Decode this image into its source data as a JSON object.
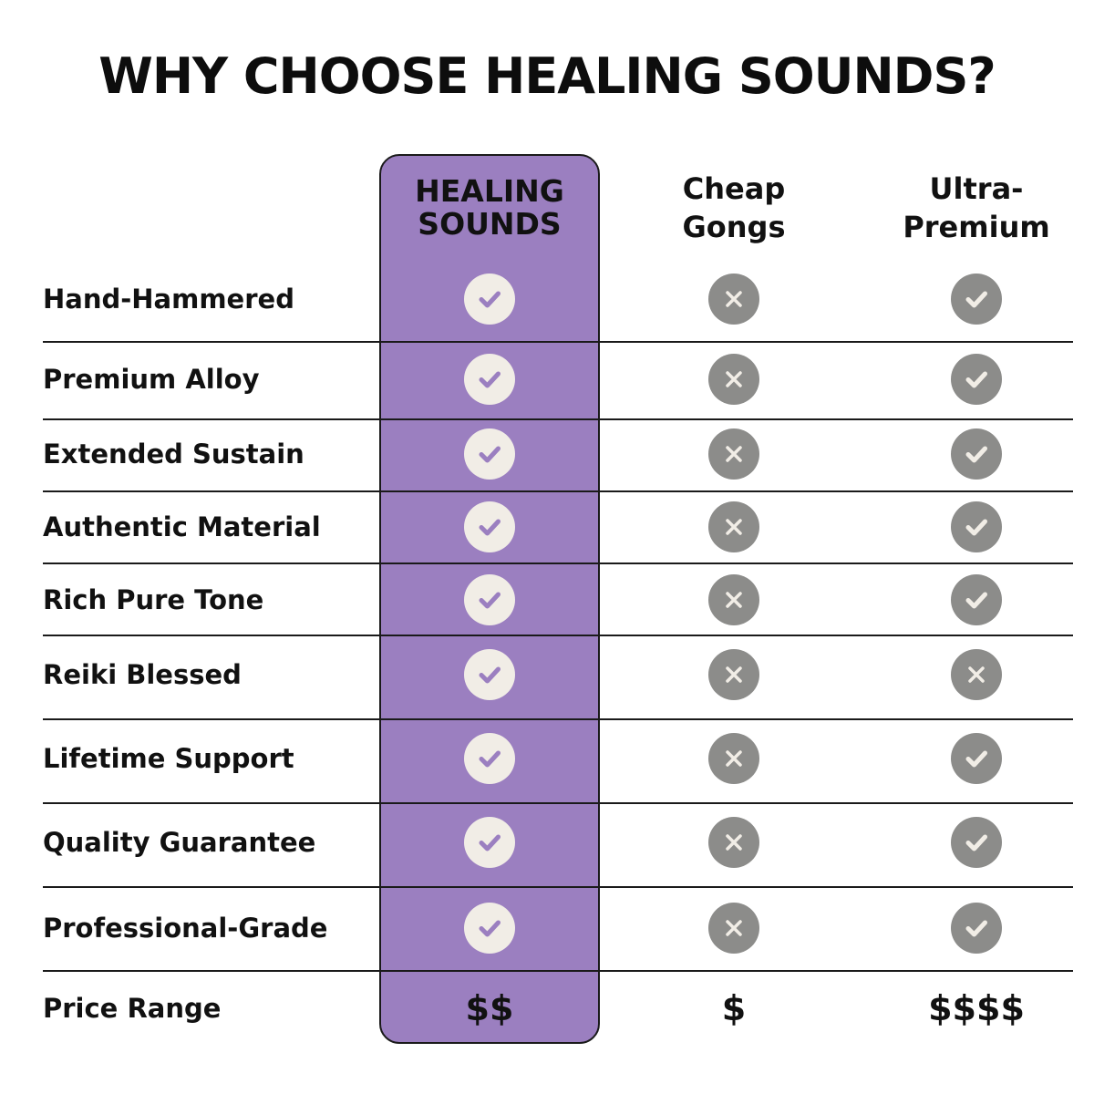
{
  "title": "WHY CHOOSE HEALING SOUNDS?",
  "colors": {
    "highlight": "#9b7fc0",
    "icon_gray": "#8c8c8a",
    "icon_light": "#f1ede6"
  },
  "columns": [
    "HEALING SOUNDS",
    "Cheap Gongs",
    "Ultra-Premium"
  ],
  "column_lines": [
    [
      "HEALING",
      "SOUNDS"
    ],
    [
      "Cheap",
      "Gongs"
    ],
    [
      "Ultra-",
      "Premium"
    ]
  ],
  "rows": [
    {
      "label": "Hand-Hammered",
      "values": [
        "check",
        "x",
        "check"
      ]
    },
    {
      "label": "Premium Alloy",
      "values": [
        "check",
        "x",
        "check"
      ]
    },
    {
      "label": "Extended Sustain",
      "values": [
        "check",
        "x",
        "check"
      ]
    },
    {
      "label": "Authentic Material",
      "values": [
        "check",
        "x",
        "check"
      ]
    },
    {
      "label": "Rich Pure Tone",
      "values": [
        "check",
        "x",
        "check"
      ]
    },
    {
      "label": "Reiki Blessed",
      "values": [
        "check",
        "x",
        "x"
      ]
    },
    {
      "label": "Lifetime Support",
      "values": [
        "check",
        "x",
        "check"
      ]
    },
    {
      "label": "Quality Guarantee",
      "values": [
        "check",
        "x",
        "check"
      ]
    },
    {
      "label": "Professional-Grade",
      "values": [
        "check",
        "x",
        "check"
      ]
    }
  ],
  "price_row": {
    "label": "Price Range",
    "values": [
      "$$",
      "$",
      "$$$$"
    ]
  }
}
